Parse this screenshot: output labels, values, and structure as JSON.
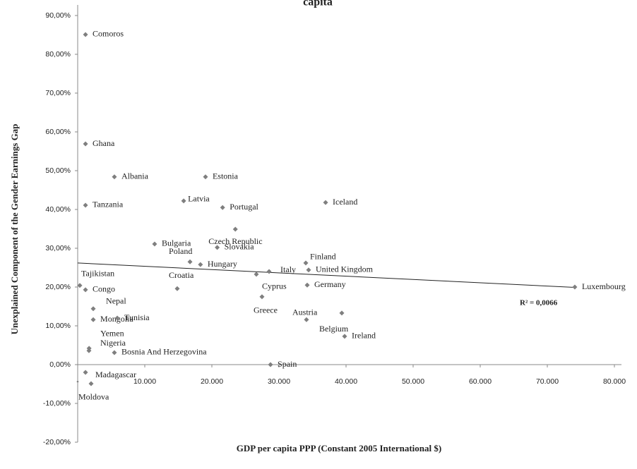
{
  "chart_data": {
    "type": "scatter",
    "title": "capita",
    "x_label": "GDP per capita  PPP (Constant 2005 International $)",
    "y_label": "Unexplained Component of the Gender Earnings Gap",
    "xlim": [
      0,
      80000
    ],
    "ylim": [
      -20,
      90
    ],
    "xticks": [
      {
        "value": 0,
        "label": "-"
      },
      {
        "value": 10000,
        "label": "10.000"
      },
      {
        "value": 20000,
        "label": "20.000"
      },
      {
        "value": 30000,
        "label": "30.000"
      },
      {
        "value": 40000,
        "label": "40.000"
      },
      {
        "value": 50000,
        "label": "50.000"
      },
      {
        "value": 60000,
        "label": "60.000"
      },
      {
        "value": 70000,
        "label": "70.000"
      },
      {
        "value": 80000,
        "label": "80.000"
      }
    ],
    "yticks": [
      {
        "value": -20,
        "label": "-20,00%"
      },
      {
        "value": -10,
        "label": "-10,00%"
      },
      {
        "value": 0,
        "label": "0,00%"
      },
      {
        "value": 10,
        "label": "10,00%"
      },
      {
        "value": 20,
        "label": "20,00%"
      },
      {
        "value": 30,
        "label": "30,00%"
      },
      {
        "value": 40,
        "label": "40,00%"
      },
      {
        "value": 50,
        "label": "50,00%"
      },
      {
        "value": 60,
        "label": "60,00%"
      },
      {
        "value": 70,
        "label": "70,00%"
      },
      {
        "value": 80,
        "label": "80,00%"
      },
      {
        "value": 90,
        "label": "90,00%"
      }
    ],
    "color": "#7f7f7f",
    "points": [
      {
        "label": "Comoros",
        "x": 1160,
        "y": 85.1
      },
      {
        "label": "Ghana",
        "x": 1160,
        "y": 56.9
      },
      {
        "label": "Albania",
        "x": 5470,
        "y": 48.4
      },
      {
        "label": "Estonia",
        "x": 19050,
        "y": 48.4
      },
      {
        "label": "Tanzania",
        "x": 1160,
        "y": 41.1
      },
      {
        "label": "Latvia",
        "x": 15800,
        "y": 42.2
      },
      {
        "label": "Portugal",
        "x": 21600,
        "y": 40.5
      },
      {
        "label": "Iceland",
        "x": 36950,
        "y": 41.8
      },
      {
        "label": "Czech Republic",
        "x": 23500,
        "y": 34.9
      },
      {
        "label": "Slovakia",
        "x": 20800,
        "y": 30.2
      },
      {
        "label": "Bulgaria",
        "x": 11470,
        "y": 31.1
      },
      {
        "label": "Poland",
        "x": 16740,
        "y": 26.5
      },
      {
        "label": "Hungary",
        "x": 18300,
        "y": 25.8
      },
      {
        "label": "Finland",
        "x": 34000,
        "y": 26.2
      },
      {
        "label": "Cyprus",
        "x": 26630,
        "y": 23.3
      },
      {
        "label": "Italy",
        "x": 28530,
        "y": 24.0
      },
      {
        "label": "United Kingdom",
        "x": 34420,
        "y": 24.4
      },
      {
        "label": "Germany",
        "x": 34210,
        "y": 20.5
      },
      {
        "label": "Luxembourg",
        "x": 74100,
        "y": 20.0
      },
      {
        "label": "Tajikistan",
        "x": 320,
        "y": 20.4
      },
      {
        "label": "Congo",
        "x": 1160,
        "y": 19.3
      },
      {
        "label": "Croatia",
        "x": 14840,
        "y": 19.6
      },
      {
        "label": "Greece",
        "x": 27470,
        "y": 17.5
      },
      {
        "label": "Austria",
        "x": 39370,
        "y": 13.3
      },
      {
        "label": "Belgium",
        "x": 34100,
        "y": 11.6
      },
      {
        "label": "Ireland",
        "x": 39790,
        "y": 7.3
      },
      {
        "label": "Nepal",
        "x": 2320,
        "y": 14.4
      },
      {
        "label": "Mongolia",
        "x": 2320,
        "y": 11.6
      },
      {
        "label": "Tunisia",
        "x": 5900,
        "y": 12.0
      },
      {
        "label": "Yemen",
        "x": 1700,
        "y": 4.2
      },
      {
        "label": "Nigeria",
        "x": 1680,
        "y": 3.6
      },
      {
        "label": "Bosnia And Herzegovina",
        "x": 5470,
        "y": 3.1
      },
      {
        "label": "Spain",
        "x": 28740,
        "y": 0.0
      },
      {
        "label": "Madagascar",
        "x": 1160,
        "y": -2.0
      },
      {
        "label": "Moldova",
        "x": 2000,
        "y": -4.9
      }
    ],
    "trendline": {
      "x": [
        0,
        74100
      ],
      "y": [
        26.2,
        19.9
      ],
      "label": "R² = 0,0066"
    }
  }
}
